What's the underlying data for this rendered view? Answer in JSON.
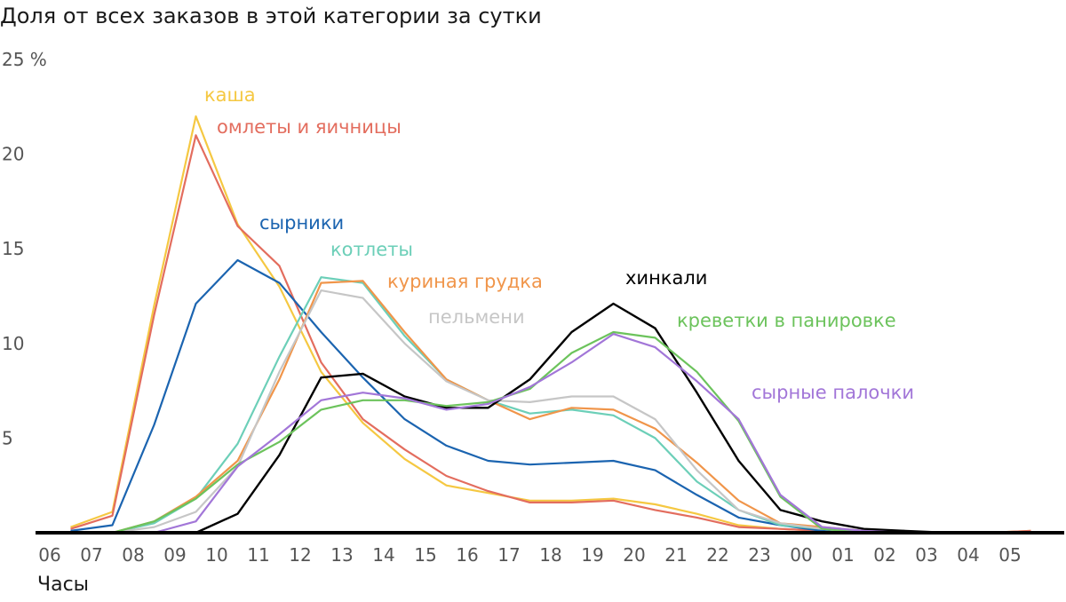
{
  "chart_data": {
    "type": "line",
    "title": "Доля от всех заказов в этой категории за сутки",
    "xlabel": "Часы",
    "y_unit_label": "25 %",
    "ylim": [
      0,
      25
    ],
    "y_ticks": [
      "",
      "5",
      "10",
      "15",
      "20"
    ],
    "categories": [
      "06",
      "07",
      "08",
      "09",
      "10",
      "11",
      "12",
      "13",
      "14",
      "15",
      "16",
      "17",
      "18",
      "19",
      "20",
      "21",
      "22",
      "23",
      "00",
      "01",
      "02",
      "03",
      "04",
      "05"
    ],
    "grid": false,
    "series": [
      {
        "name": "каша",
        "color": "#f5c842",
        "values": [
          0.3,
          1.1,
          12.0,
          22.0,
          16.3,
          13.0,
          8.5,
          5.8,
          3.9,
          2.5,
          2.1,
          1.7,
          1.7,
          1.8,
          1.5,
          1.0,
          0.4,
          0.2,
          0.1,
          0.0,
          0.0,
          0.0,
          0.0,
          0.1
        ]
      },
      {
        "name": "омлеты и яичницы",
        "color": "#e36d5e",
        "values": [
          0.2,
          0.9,
          11.5,
          21.0,
          16.2,
          14.1,
          9.0,
          6.0,
          4.4,
          3.0,
          2.2,
          1.6,
          1.6,
          1.7,
          1.2,
          0.8,
          0.3,
          0.2,
          0.1,
          0.0,
          0.0,
          0.0,
          0.0,
          0.1
        ]
      },
      {
        "name": "сырники",
        "color": "#1b64b0",
        "values": [
          0.1,
          0.4,
          5.7,
          12.1,
          14.4,
          13.2,
          10.6,
          8.2,
          6.0,
          4.6,
          3.8,
          3.6,
          3.7,
          3.8,
          3.3,
          2.0,
          0.8,
          0.4,
          0.1,
          0.0,
          0.0,
          0.0,
          0.0,
          0.0
        ]
      },
      {
        "name": "котлеты",
        "color": "#6ccfb8",
        "values": [
          0.0,
          0.0,
          0.5,
          1.8,
          4.7,
          9.3,
          13.5,
          13.2,
          10.4,
          8.1,
          7.0,
          6.3,
          6.5,
          6.2,
          5.0,
          2.7,
          1.2,
          0.4,
          0.2,
          0.0,
          0.0,
          0.0,
          0.0,
          0.0
        ]
      },
      {
        "name": "куриная грудка",
        "color": "#f0954a",
        "values": [
          0.0,
          0.0,
          0.6,
          1.9,
          3.8,
          8.1,
          13.2,
          13.3,
          10.6,
          8.1,
          7.0,
          6.0,
          6.6,
          6.5,
          5.5,
          3.7,
          1.7,
          0.5,
          0.3,
          0.1,
          0.0,
          0.0,
          0.0,
          0.0
        ]
      },
      {
        "name": "пельмени",
        "color": "#c6c6c6",
        "values": [
          0.0,
          0.0,
          0.3,
          1.1,
          3.5,
          8.5,
          12.8,
          12.4,
          10.0,
          8.0,
          7.0,
          6.9,
          7.2,
          7.2,
          6.0,
          3.3,
          1.2,
          0.5,
          0.2,
          0.0,
          0.0,
          0.0,
          0.0,
          0.0
        ]
      },
      {
        "name": "хинкали",
        "color": "#000000",
        "values": [
          0.0,
          0.0,
          0.0,
          0.0,
          1.0,
          4.1,
          8.2,
          8.4,
          7.2,
          6.6,
          6.6,
          8.1,
          10.6,
          12.1,
          10.8,
          7.4,
          3.8,
          1.2,
          0.6,
          0.2,
          0.1,
          0.0,
          0.0,
          0.0
        ]
      },
      {
        "name": "креветки в панировке",
        "color": "#6cc35c",
        "values": [
          0.0,
          0.0,
          0.6,
          1.8,
          3.6,
          4.8,
          6.5,
          7.0,
          7.0,
          6.7,
          6.9,
          7.6,
          9.5,
          10.6,
          10.3,
          8.5,
          5.9,
          1.9,
          0.2,
          0.0,
          0.0,
          0.0,
          0.0,
          0.0
        ]
      },
      {
        "name": "сырные палочки",
        "color": "#a276d8",
        "values": [
          0.0,
          0.0,
          0.0,
          0.6,
          3.5,
          5.2,
          7.0,
          7.4,
          7.1,
          6.5,
          6.8,
          7.7,
          9.0,
          10.5,
          9.8,
          8.0,
          6.0,
          2.0,
          0.3,
          0.1,
          0.0,
          0.0,
          0.0,
          0.0
        ]
      }
    ]
  }
}
